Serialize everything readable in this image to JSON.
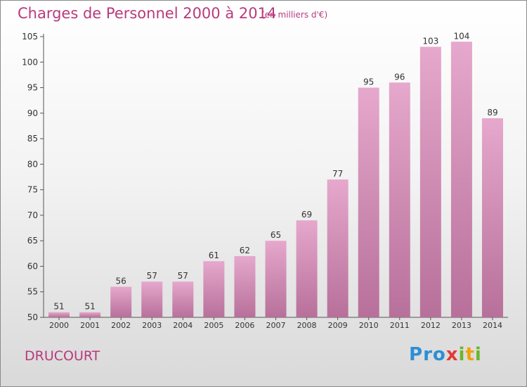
{
  "title": "Charges de Personnel 2000 à 2014",
  "subtitle": "(en milliers d'€)",
  "commune": "DRUCOURT",
  "logo": {
    "text": "Proxiti",
    "colors": [
      "#2c8fd6",
      "#f2a10a",
      "#6cb52e",
      "#e23a3a"
    ]
  },
  "colors": {
    "bar_top": "#e6a8cc",
    "bar_bottom": "#b7709a",
    "text_accent": "#b83a7d"
  },
  "chart_data": {
    "type": "bar",
    "title": "Charges de Personnel 2000 à 2014",
    "subtitle": "(en milliers d'€)",
    "categories": [
      "2000",
      "2001",
      "2002",
      "2003",
      "2004",
      "2005",
      "2006",
      "2007",
      "2008",
      "2009",
      "2010",
      "2011",
      "2012",
      "2013",
      "2014"
    ],
    "values": [
      51,
      51,
      56,
      57,
      57,
      61,
      62,
      65,
      69,
      77,
      95,
      96,
      103,
      104,
      89
    ],
    "ylim": [
      50,
      105
    ],
    "yticks": [
      50,
      55,
      60,
      65,
      70,
      75,
      80,
      85,
      90,
      95,
      100,
      105
    ],
    "grid": false,
    "data_labels": true
  }
}
